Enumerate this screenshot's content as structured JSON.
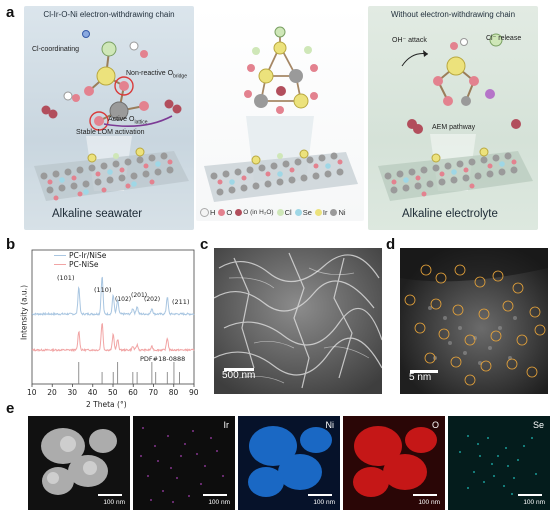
{
  "panels": {
    "a": {
      "letter": "a",
      "left": {
        "banner": "Cl-Ir-O-Ni electron-withdrawing chain",
        "labels": {
          "cl_coordinating": "Cl-coordinating",
          "non_reactive": "Non-reactive O",
          "non_reactive_sub": "bridge",
          "active": "Active O",
          "active_sub": "lattice",
          "stable_lom": "Stable LOM activation"
        },
        "bottom_label": "Alkaline seawater"
      },
      "right": {
        "banner": "Without electron-withdrawing chain",
        "labels": {
          "oh_attack": "OH⁻ attack",
          "cl_release": "Cl⁻ release",
          "aem": "AEM pathway"
        },
        "bottom_label": "Alkaline electrolyte"
      },
      "legend": [
        {
          "symbol": "H",
          "color": "#f4f4f4"
        },
        {
          "symbol": "O",
          "color": "#e3828f"
        },
        {
          "symbol": "O (in H₂O)",
          "color": "#b24e5c"
        },
        {
          "symbol": "Cl",
          "color": "#cfe7b8"
        },
        {
          "symbol": "Se",
          "color": "#9fd7e6"
        },
        {
          "symbol": "Ir",
          "color": "#ece27c"
        },
        {
          "symbol": "Ni",
          "color": "#9a9a9a"
        }
      ]
    },
    "b": {
      "letter": "b",
      "legend": [
        {
          "name": "PC-Ir/NiSe",
          "color": "#a9c6e1"
        },
        {
          "name": "PC-NiSe",
          "color": "#f1a4a4"
        }
      ],
      "peak_labels": [
        "(101)",
        "(110)",
        "(102)",
        "(201)",
        "(202)",
        "(211)"
      ],
      "pdf_label": "PDF#18-0888",
      "ylabel": "Intensity (a.u.)",
      "xlabel": "2 Theta (°)",
      "xticks": [
        "10",
        "20",
        "30",
        "40",
        "50",
        "60",
        "70",
        "80",
        "90"
      ]
    },
    "c": {
      "letter": "c",
      "scale": "500 nm"
    },
    "d": {
      "letter": "d",
      "scale": "5 nm"
    },
    "e": {
      "letter": "e",
      "maps": [
        {
          "element": "",
          "scale": "100 nm",
          "color": "#bfbfbf"
        },
        {
          "element": "Ir",
          "scale": "100 nm",
          "color": "#c04ad0"
        },
        {
          "element": "Ni",
          "scale": "100 nm",
          "color": "#1e78e0"
        },
        {
          "element": "O",
          "scale": "100 nm",
          "color": "#e11b1b"
        },
        {
          "element": "Se",
          "scale": "100 nm",
          "color": "#21b9b4"
        }
      ]
    }
  },
  "chart_data": {
    "type": "line",
    "title": "",
    "xlabel": "2 Theta (°)",
    "ylabel": "Intensity (a.u.)",
    "xlim": [
      10,
      90
    ],
    "series": [
      {
        "name": "PC-Ir/NiSe",
        "x": [
          33.1,
          44.6,
          50.1,
          52.3,
          59.8,
          61.9,
          69.2,
          76.8
        ],
        "values": [
          0.7,
          1.0,
          0.5,
          0.35,
          0.15,
          0.2,
          0.15,
          0.45
        ]
      },
      {
        "name": "PC-NiSe",
        "x": [
          33.1,
          44.6,
          50.1,
          52.3,
          59.8,
          61.9,
          69.2,
          76.8
        ],
        "values": [
          0.55,
          0.8,
          0.45,
          0.3,
          0.1,
          0.15,
          0.1,
          0.35
        ]
      }
    ],
    "reference": {
      "name": "PDF#18-0888",
      "x": [
        33.1,
        44.6,
        50.1,
        52.3,
        59.8,
        61.9,
        69.2,
        71.1,
        76.8,
        80.1,
        82.8
      ]
    },
    "peak_labels": [
      {
        "text": "(101)",
        "x": 33.1
      },
      {
        "text": "(110)",
        "x": 44.6
      },
      {
        "text": "(102)",
        "x": 50.1
      },
      {
        "text": "(201)",
        "x": 59.8
      },
      {
        "text": "(202)",
        "x": 69.2
      },
      {
        "text": "(211)",
        "x": 76.8
      }
    ]
  }
}
